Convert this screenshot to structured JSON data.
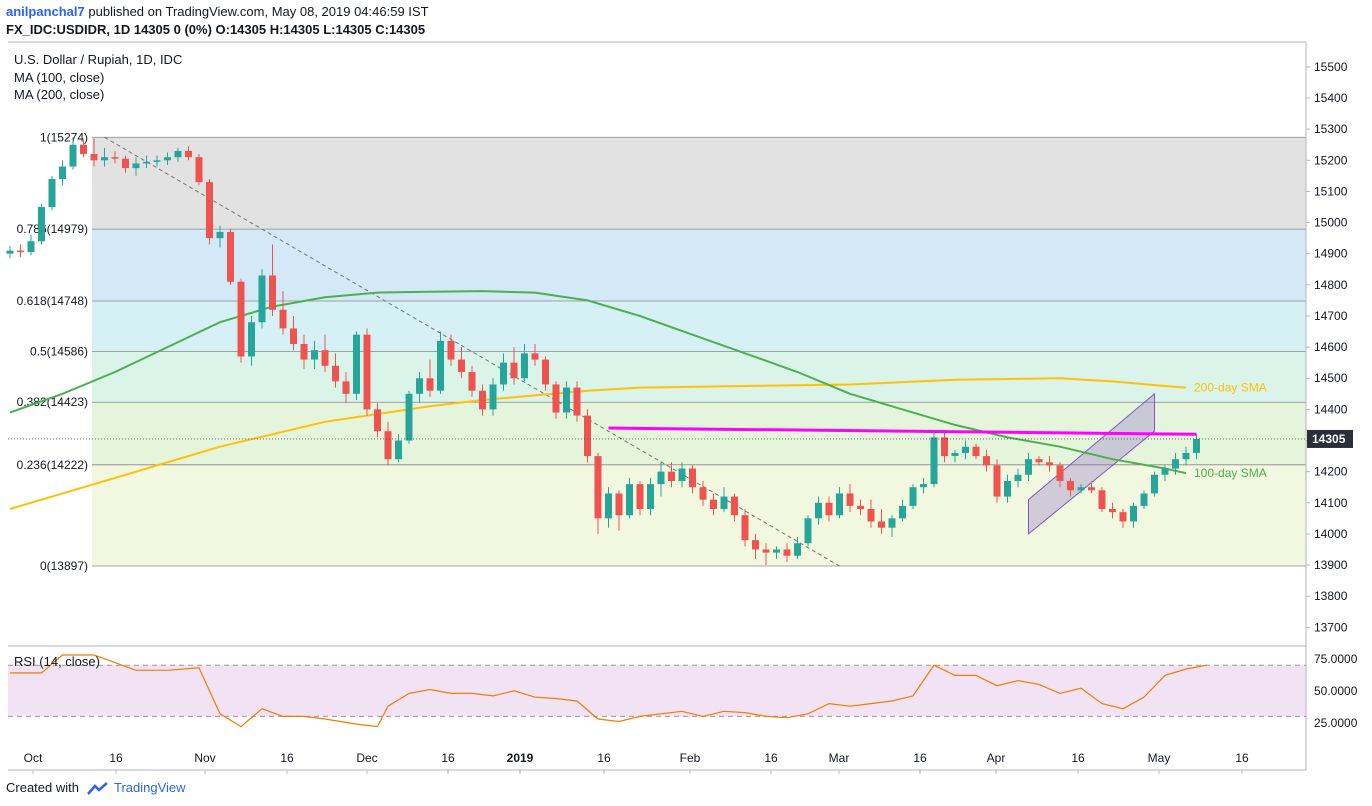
{
  "header": {
    "publisher": "anilpanchal7",
    "published_text": "published on TradingView.com, May 08, 2019 04:46:59 IST",
    "symbol_line": "FX_IDC:USDIDR, 1D  14305  0 (0%)  O:14305  H:14305  L:14305  C:14305"
  },
  "legend": {
    "title": "U.S. Dollar / Rupiah, 1D, IDC",
    "ma100": "MA (100, close)",
    "ma200": "MA (200, close)",
    "rsi": "RSI (14, close)"
  },
  "footer": {
    "created_with": "Created with",
    "brand": "TradingView"
  },
  "colors": {
    "bull": "#26a69a",
    "bear": "#ef5350",
    "ma100": "#4caf50",
    "ma200": "#ffc107",
    "resistance": "#ff00ff",
    "channel": "#7e57c2",
    "rsi": "#f57c00",
    "price_tag": "#2a2e39"
  },
  "chart_data": {
    "type": "candlestick",
    "title": "U.S. Dollar / Rupiah, 1D, IDC",
    "x_ticks": [
      "Oct",
      "16",
      "Nov",
      "16",
      "Dec",
      "16",
      "2019",
      "16",
      "Feb",
      "16",
      "Mar",
      "16",
      "Apr",
      "16",
      "May",
      "16"
    ],
    "y_ticks": [
      15500,
      15400,
      15300,
      15200,
      15100,
      15000,
      14900,
      14800,
      14700,
      14600,
      14500,
      14400,
      14300,
      14200,
      14100,
      14000,
      13900,
      13800,
      13700
    ],
    "ylim": [
      13640,
      15580
    ],
    "last_price": 14305,
    "candles": [
      [
        14900,
        14925,
        14885,
        14910
      ],
      [
        14910,
        14930,
        14890,
        14905
      ],
      [
        14905,
        14960,
        14895,
        14940
      ],
      [
        14940,
        15060,
        14930,
        15050
      ],
      [
        15050,
        15150,
        15040,
        15140
      ],
      [
        15140,
        15200,
        15120,
        15180
      ],
      [
        15180,
        15274,
        15170,
        15250
      ],
      [
        15250,
        15265,
        15210,
        15220
      ],
      [
        15220,
        15270,
        15180,
        15200
      ],
      [
        15200,
        15240,
        15180,
        15210
      ],
      [
        15210,
        15230,
        15190,
        15205
      ],
      [
        15205,
        15215,
        15160,
        15175
      ],
      [
        15175,
        15210,
        15150,
        15190
      ],
      [
        15190,
        15215,
        15175,
        15195
      ],
      [
        15195,
        15215,
        15180,
        15200
      ],
      [
        15200,
        15225,
        15185,
        15210
      ],
      [
        15210,
        15240,
        15195,
        15230
      ],
      [
        15230,
        15245,
        15200,
        15210
      ],
      [
        15210,
        15220,
        15120,
        15130
      ],
      [
        15130,
        15140,
        14930,
        14950
      ],
      [
        14950,
        14990,
        14920,
        14970
      ],
      [
        14970,
        14980,
        14800,
        14810
      ],
      [
        14810,
        14820,
        14550,
        14570
      ],
      [
        14570,
        14700,
        14540,
        14680
      ],
      [
        14680,
        14850,
        14660,
        14830
      ],
      [
        14830,
        14930,
        14700,
        14720
      ],
      [
        14720,
        14780,
        14640,
        14660
      ],
      [
        14660,
        14700,
        14590,
        14610
      ],
      [
        14610,
        14640,
        14530,
        14560
      ],
      [
        14560,
        14620,
        14530,
        14590
      ],
      [
        14590,
        14640,
        14520,
        14540
      ],
      [
        14540,
        14580,
        14470,
        14490
      ],
      [
        14490,
        14520,
        14420,
        14450
      ],
      [
        14450,
        14650,
        14430,
        14640
      ],
      [
        14640,
        14660,
        14380,
        14400
      ],
      [
        14400,
        14420,
        14310,
        14330
      ],
      [
        14330,
        14360,
        14220,
        14240
      ],
      [
        14240,
        14320,
        14230,
        14300
      ],
      [
        14300,
        14460,
        14290,
        14450
      ],
      [
        14450,
        14520,
        14420,
        14500
      ],
      [
        14500,
        14560,
        14440,
        14460
      ],
      [
        14460,
        14650,
        14450,
        14620
      ],
      [
        14620,
        14640,
        14540,
        14560
      ],
      [
        14560,
        14600,
        14500,
        14520
      ],
      [
        14520,
        14540,
        14440,
        14460
      ],
      [
        14460,
        14480,
        14380,
        14400
      ],
      [
        14400,
        14500,
        14380,
        14480
      ],
      [
        14480,
        14580,
        14460,
        14550
      ],
      [
        14550,
        14600,
        14480,
        14500
      ],
      [
        14500,
        14610,
        14490,
        14580
      ],
      [
        14580,
        14610,
        14540,
        14560
      ],
      [
        14560,
        14570,
        14460,
        14480
      ],
      [
        14480,
        14490,
        14370,
        14390
      ],
      [
        14390,
        14490,
        14370,
        14470
      ],
      [
        14470,
        14490,
        14360,
        14380
      ],
      [
        14380,
        14400,
        14230,
        14250
      ],
      [
        14250,
        14260,
        14000,
        14050
      ],
      [
        14050,
        14150,
        14020,
        14130
      ],
      [
        14130,
        14140,
        14010,
        14060
      ],
      [
        14060,
        14180,
        14050,
        14160
      ],
      [
        14160,
        14170,
        14060,
        14080
      ],
      [
        14080,
        14180,
        14060,
        14160
      ],
      [
        14160,
        14230,
        14120,
        14200
      ],
      [
        14200,
        14230,
        14150,
        14170
      ],
      [
        14170,
        14230,
        14150,
        14210
      ],
      [
        14210,
        14220,
        14130,
        14150
      ],
      [
        14150,
        14170,
        14090,
        14110
      ],
      [
        14110,
        14130,
        14060,
        14080
      ],
      [
        14080,
        14150,
        14070,
        14120
      ],
      [
        14120,
        14130,
        14040,
        14060
      ],
      [
        14060,
        14080,
        13960,
        13980
      ],
      [
        13980,
        14000,
        13920,
        13950
      ],
      [
        13950,
        13970,
        13900,
        13940
      ],
      [
        13940,
        13960,
        13920,
        13950
      ],
      [
        13950,
        13970,
        13910,
        13930
      ],
      [
        13930,
        13990,
        13920,
        13970
      ],
      [
        13970,
        14060,
        13960,
        14050
      ],
      [
        14050,
        14120,
        14030,
        14100
      ],
      [
        14100,
        14120,
        14040,
        14060
      ],
      [
        14060,
        14150,
        14050,
        14130
      ],
      [
        14130,
        14160,
        14070,
        14090
      ],
      [
        14090,
        14110,
        14060,
        14080
      ],
      [
        14080,
        14110,
        14020,
        14040
      ],
      [
        14040,
        14080,
        14000,
        14020
      ],
      [
        14020,
        14060,
        13990,
        14050
      ],
      [
        14050,
        14110,
        14040,
        14090
      ],
      [
        14090,
        14160,
        14080,
        14150
      ],
      [
        14150,
        14180,
        14130,
        14160
      ],
      [
        14160,
        14330,
        14150,
        14310
      ],
      [
        14310,
        14330,
        14230,
        14250
      ],
      [
        14250,
        14270,
        14230,
        14260
      ],
      [
        14260,
        14300,
        14240,
        14280
      ],
      [
        14280,
        14290,
        14240,
        14250
      ],
      [
        14250,
        14270,
        14200,
        14220
      ],
      [
        14220,
        14240,
        14100,
        14120
      ],
      [
        14120,
        14190,
        14100,
        14170
      ],
      [
        14170,
        14210,
        14150,
        14190
      ],
      [
        14190,
        14260,
        14170,
        14240
      ],
      [
        14240,
        14250,
        14220,
        14230
      ],
      [
        14230,
        14250,
        14200,
        14220
      ],
      [
        14220,
        14230,
        14150,
        14170
      ],
      [
        14170,
        14180,
        14120,
        14140
      ],
      [
        14140,
        14160,
        14130,
        14150
      ],
      [
        14150,
        14170,
        14130,
        14140
      ],
      [
        14140,
        14150,
        14070,
        14080
      ],
      [
        14080,
        14100,
        14050,
        14070
      ],
      [
        14070,
        14080,
        14020,
        14040
      ],
      [
        14040,
        14100,
        14020,
        14090
      ],
      [
        14090,
        14140,
        14080,
        14130
      ],
      [
        14130,
        14200,
        14120,
        14190
      ],
      [
        14190,
        14220,
        14170,
        14210
      ],
      [
        14210,
        14260,
        14190,
        14240
      ],
      [
        14240,
        14280,
        14220,
        14260
      ],
      [
        14260,
        14320,
        14240,
        14305
      ]
    ],
    "ma100": [
      [
        0,
        14390
      ],
      [
        5,
        14450
      ],
      [
        10,
        14520
      ],
      [
        15,
        14600
      ],
      [
        20,
        14680
      ],
      [
        25,
        14730
      ],
      [
        30,
        14760
      ],
      [
        35,
        14775
      ],
      [
        40,
        14778
      ],
      [
        45,
        14780
      ],
      [
        50,
        14775
      ],
      [
        55,
        14750
      ],
      [
        60,
        14700
      ],
      [
        65,
        14640
      ],
      [
        70,
        14580
      ],
      [
        75,
        14520
      ],
      [
        80,
        14450
      ],
      [
        85,
        14400
      ],
      [
        90,
        14350
      ],
      [
        95,
        14310
      ],
      [
        100,
        14280
      ],
      [
        105,
        14240
      ],
      [
        110,
        14210
      ],
      [
        112,
        14195
      ]
    ],
    "ma200": [
      [
        0,
        14080
      ],
      [
        10,
        14180
      ],
      [
        20,
        14280
      ],
      [
        30,
        14360
      ],
      [
        40,
        14410
      ],
      [
        45,
        14430
      ],
      [
        50,
        14445
      ],
      [
        55,
        14460
      ],
      [
        60,
        14470
      ],
      [
        70,
        14475
      ],
      [
        80,
        14480
      ],
      [
        90,
        14495
      ],
      [
        100,
        14500
      ],
      [
        105,
        14490
      ],
      [
        110,
        14475
      ],
      [
        112,
        14470
      ]
    ],
    "resistance_line": [
      [
        57,
        14340
      ],
      [
        113,
        14320
      ]
    ],
    "channel": {
      "lower": [
        [
          97,
          14000
        ],
        [
          109,
          14330
        ]
      ],
      "upper": [
        [
          97,
          14110
        ],
        [
          109,
          14450
        ]
      ]
    },
    "trendline": [
      [
        9,
        15274
      ],
      [
        79,
        13897
      ]
    ],
    "fibonacci": [
      {
        "label": "1(15274)",
        "value": 15274,
        "color": "#d8d8d8"
      },
      {
        "label": "0.786(14979)",
        "value": 14979,
        "color": "#c5e1f5"
      },
      {
        "label": "0.618(14748)",
        "value": 14748,
        "color": "#c8ecf1"
      },
      {
        "label": "0.5(14586)",
        "value": 14586,
        "color": "#cdf0e1"
      },
      {
        "label": "0.382(14423)",
        "value": 14423,
        "color": "#dcf2d0"
      },
      {
        "label": "0.236(14222)",
        "value": 14222,
        "color": "#eef5d4"
      },
      {
        "label": "0(13897)",
        "value": 13897,
        "color": "#f6d6d6"
      }
    ],
    "annotations": {
      "sma200": "200-day SMA",
      "sma100": "100-day SMA"
    },
    "rsi": {
      "y_ticks": [
        "75.0000",
        "50.0000",
        "25.0000"
      ],
      "ylim": [
        10,
        85
      ],
      "bands": [
        30,
        70
      ],
      "values": [
        [
          0,
          64
        ],
        [
          3,
          64
        ],
        [
          5,
          78
        ],
        [
          8,
          78
        ],
        [
          10,
          72
        ],
        [
          12,
          66
        ],
        [
          15,
          66
        ],
        [
          18,
          68
        ],
        [
          20,
          32
        ],
        [
          22,
          22
        ],
        [
          24,
          36
        ],
        [
          26,
          30
        ],
        [
          28,
          30
        ],
        [
          30,
          28
        ],
        [
          33,
          24
        ],
        [
          35,
          22
        ],
        [
          36,
          38
        ],
        [
          38,
          48
        ],
        [
          40,
          51
        ],
        [
          42,
          48
        ],
        [
          44,
          48
        ],
        [
          46,
          46
        ],
        [
          48,
          50
        ],
        [
          50,
          45
        ],
        [
          52,
          44
        ],
        [
          54,
          42
        ],
        [
          56,
          28
        ],
        [
          58,
          26
        ],
        [
          60,
          30
        ],
        [
          62,
          32
        ],
        [
          64,
          34
        ],
        [
          66,
          30
        ],
        [
          68,
          34
        ],
        [
          70,
          33
        ],
        [
          72,
          30
        ],
        [
          74,
          29
        ],
        [
          76,
          32
        ],
        [
          78,
          40
        ],
        [
          80,
          38
        ],
        [
          82,
          40
        ],
        [
          84,
          42
        ],
        [
          86,
          46
        ],
        [
          88,
          70
        ],
        [
          90,
          62
        ],
        [
          92,
          62
        ],
        [
          94,
          54
        ],
        [
          96,
          58
        ],
        [
          98,
          55
        ],
        [
          100,
          48
        ],
        [
          102,
          52
        ],
        [
          104,
          40
        ],
        [
          106,
          36
        ],
        [
          108,
          45
        ],
        [
          110,
          62
        ],
        [
          112,
          67
        ],
        [
          114,
          70
        ]
      ]
    }
  }
}
